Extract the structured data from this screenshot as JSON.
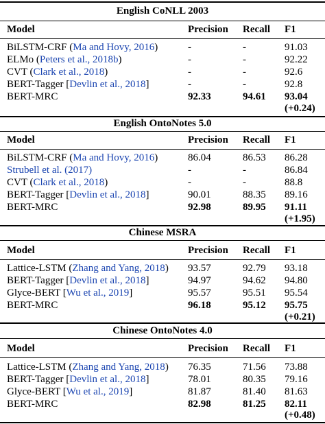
{
  "columns": {
    "model": "Model",
    "precision": "Precision",
    "recall": "Recall",
    "f1": "F1"
  },
  "citation_color": "#1a44b0",
  "sections": [
    {
      "title": "English CoNLL 2003",
      "rows": [
        {
          "name": "BiLSTM-CRF",
          "cite": "Ma and Hovy, 2016",
          "precision": "-",
          "recall": "-",
          "f1": "91.03"
        },
        {
          "name": "ELMo",
          "cite": "Peters et al., 2018b",
          "precision": "-",
          "recall": "-",
          "f1": "92.22"
        },
        {
          "name": "CVT",
          "cite": "Clark et al., 2018",
          "precision": "-",
          "recall": "-",
          "f1": "92.6"
        },
        {
          "name": "BERT-Tagger",
          "cite": "Devlin et al., 2018",
          "precision": "-",
          "recall": "-",
          "f1": "92.8"
        },
        {
          "name": "BERT-MRC",
          "precision": "92.33",
          "recall": "94.61",
          "f1": "93.04",
          "delta": "(+0.24)"
        }
      ]
    },
    {
      "title": "English OntoNotes 5.0",
      "rows": [
        {
          "name": "BiLSTM-CRF",
          "cite": "Ma and Hovy, 2016",
          "precision": "86.04",
          "recall": "86.53",
          "f1": "86.28"
        },
        {
          "cite_only": "Strubell et al. (2017)",
          "precision": "-",
          "recall": "-",
          "f1": "86.84"
        },
        {
          "name": "CVT",
          "cite": "Clark et al., 2018",
          "precision": "-",
          "recall": "-",
          "f1": "88.8"
        },
        {
          "name": "BERT-Tagger",
          "cite": "Devlin et al., 2018",
          "precision": "90.01",
          "recall": "88.35",
          "f1": "89.16"
        },
        {
          "name": "BERT-MRC",
          "precision": "92.98",
          "recall": "89.95",
          "f1": "91.11",
          "delta": "(+1.95)"
        }
      ]
    },
    {
      "title": "Chinese MSRA",
      "rows": [
        {
          "name": "Lattice-LSTM",
          "cite": "Zhang and Yang, 2018",
          "precision": "93.57",
          "recall": "92.79",
          "f1": "93.18"
        },
        {
          "name": "BERT-Tagger",
          "cite": "Devlin et al., 2018",
          "precision": "94.97",
          "recall": "94.62",
          "f1": "94.80"
        },
        {
          "name": "Glyce-BERT",
          "cite": "Wu et al., 2019",
          "precision": "95.57",
          "recall": "95.51",
          "f1": "95.54"
        },
        {
          "name": "BERT-MRC",
          "precision": "96.18",
          "recall": "95.12",
          "f1": "95.75",
          "delta": "(+0.21)"
        }
      ]
    },
    {
      "title": "Chinese OntoNotes 4.0",
      "rows": [
        {
          "name": "Lattice-LSTM",
          "cite": "Zhang and Yang, 2018",
          "precision": "76.35",
          "recall": "71.56",
          "f1": "73.88"
        },
        {
          "name": "BERT-Tagger",
          "cite": "Devlin et al., 2018",
          "precision": "78.01",
          "recall": "80.35",
          "f1": "79.16"
        },
        {
          "name": "Glyce-BERT",
          "cite": "Wu et al., 2019",
          "precision": "81.87",
          "recall": "81.40",
          "f1": "81.63"
        },
        {
          "name": "BERT-MRC",
          "precision": "82.98",
          "recall": "81.25",
          "f1": "82.11",
          "delta": "(+0.48)"
        }
      ]
    }
  ]
}
